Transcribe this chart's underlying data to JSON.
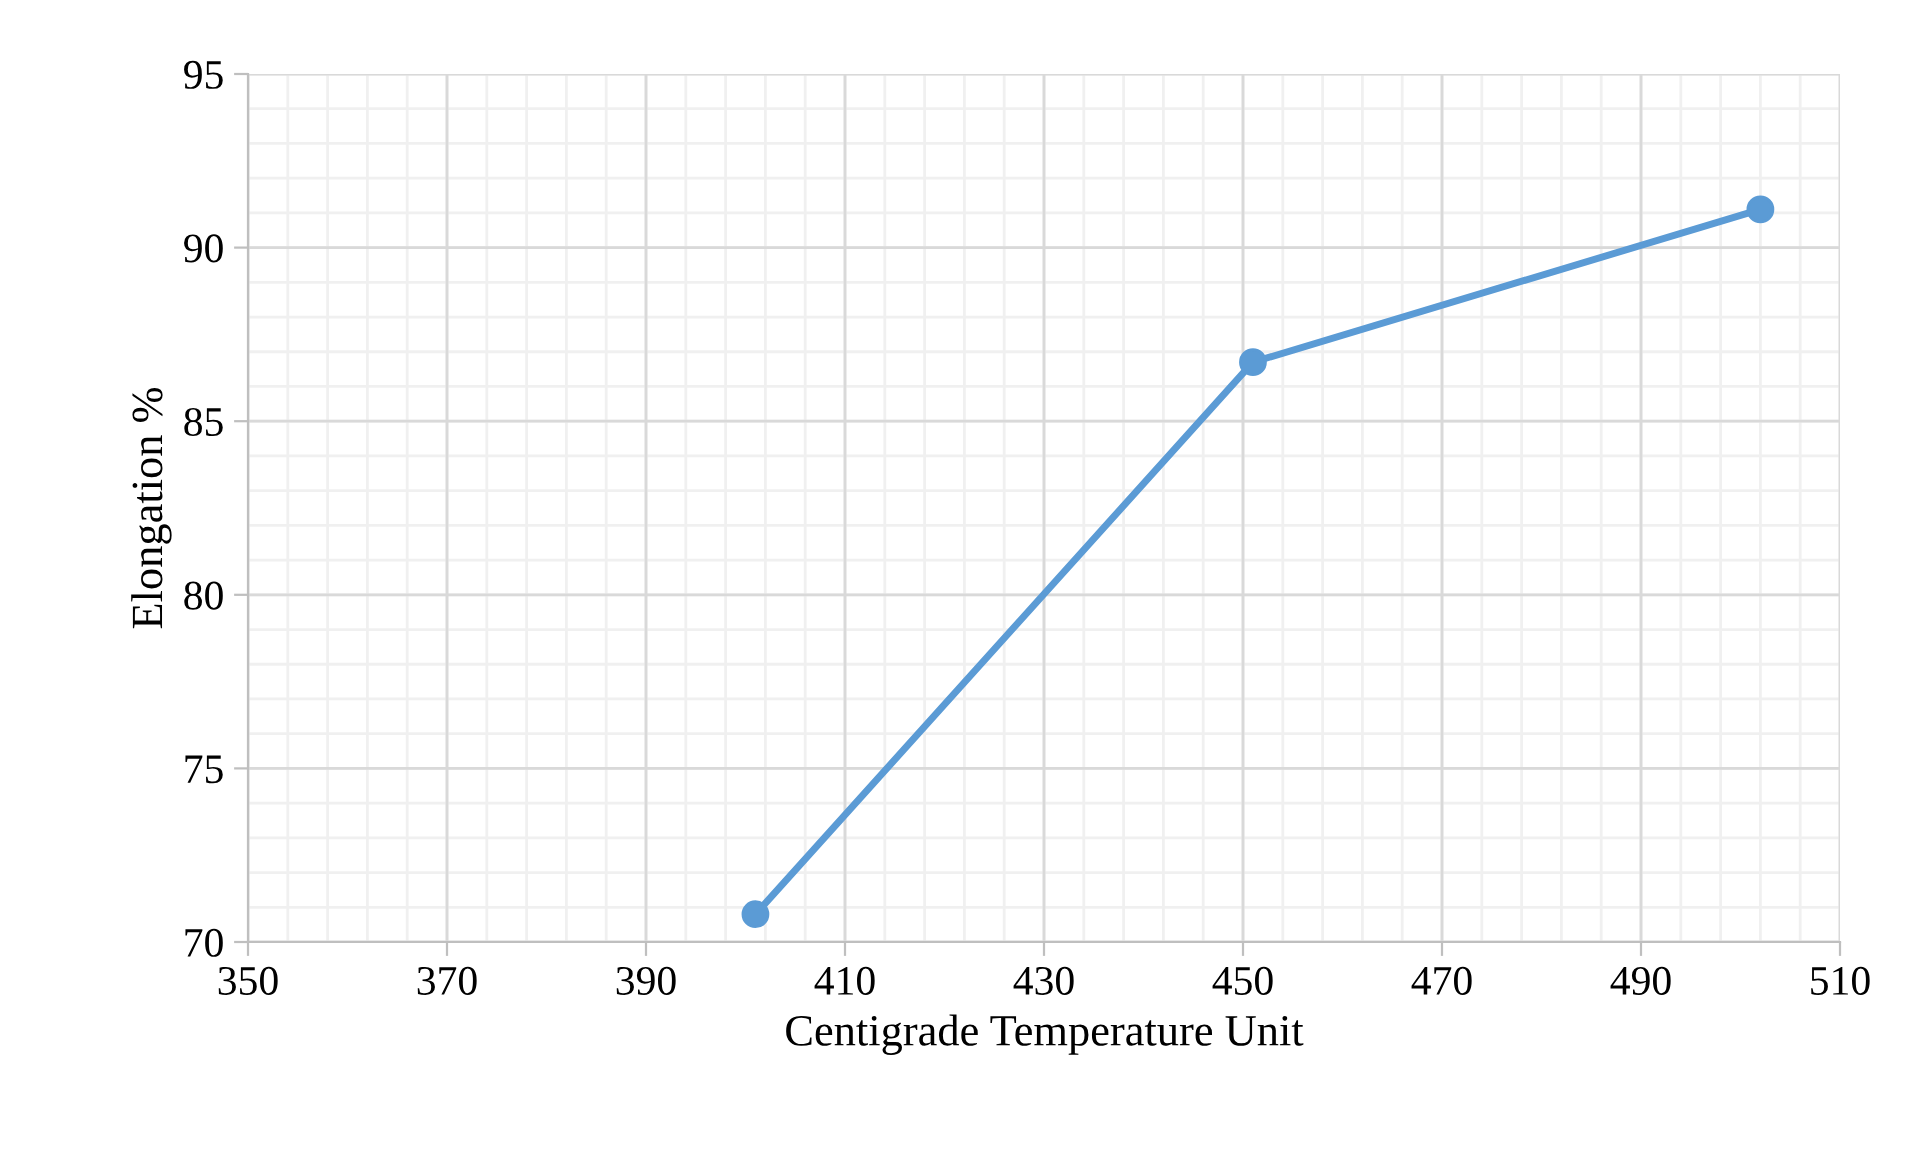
{
  "chart_data": {
    "type": "line",
    "xlabel": "Centigrade Temperature Unit",
    "ylabel": "Elongation %",
    "x": [
      401,
      451,
      502
    ],
    "series": [
      {
        "color": "#5b9bd5",
        "values": [
          70.8,
          86.7,
          91.1
        ]
      }
    ],
    "xlim": [
      350,
      510
    ],
    "xticks": [
      350,
      370,
      390,
      410,
      430,
      450,
      470,
      490,
      510
    ],
    "ylim": [
      70,
      95
    ],
    "yticks": [
      70,
      75,
      80,
      85,
      90,
      95
    ],
    "grid": true,
    "marker": "circle",
    "line_style": "solid",
    "legend": false
  }
}
